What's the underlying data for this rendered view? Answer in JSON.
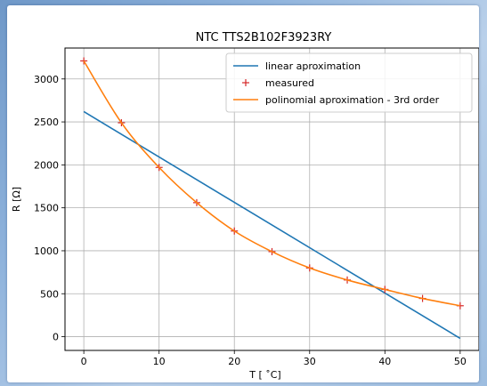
{
  "chart_data": {
    "type": "line",
    "title": "NTC TTS2B102F3923RY",
    "xlabel": "T [$^\\circ$C]",
    "xlabel_display": "T [ ˚C]",
    "ylabel": "R [Ω]",
    "xlim": [
      -2.5,
      52.5
    ],
    "ylim": [
      -160,
      3360
    ],
    "xticks": [
      0,
      10,
      20,
      30,
      40,
      50
    ],
    "yticks": [
      0,
      500,
      1000,
      1500,
      2000,
      2500,
      3000
    ],
    "grid": true,
    "legend_position": "upper right",
    "series": [
      {
        "name": "linear aproximation",
        "kind": "line",
        "color": "#1f77b4",
        "x": [
          0,
          50
        ],
        "y": [
          2620,
          -20
        ]
      },
      {
        "name": "measured",
        "kind": "marker",
        "marker": "+",
        "color": "#d62728",
        "x": [
          0,
          5,
          10,
          15,
          20,
          25,
          30,
          35,
          40,
          45,
          50
        ],
        "y": [
          3210,
          2490,
          1970,
          1560,
          1230,
          990,
          800,
          660,
          550,
          445,
          360
        ]
      },
      {
        "name": "polinomial aproximation - 3rd order",
        "kind": "line",
        "color": "#ff7f0e",
        "x": [
          0,
          5,
          10,
          15,
          20,
          25,
          30,
          35,
          40,
          45,
          50
        ],
        "y": [
          3210,
          2490,
          1970,
          1560,
          1230,
          990,
          800,
          660,
          550,
          445,
          360
        ]
      }
    ]
  }
}
